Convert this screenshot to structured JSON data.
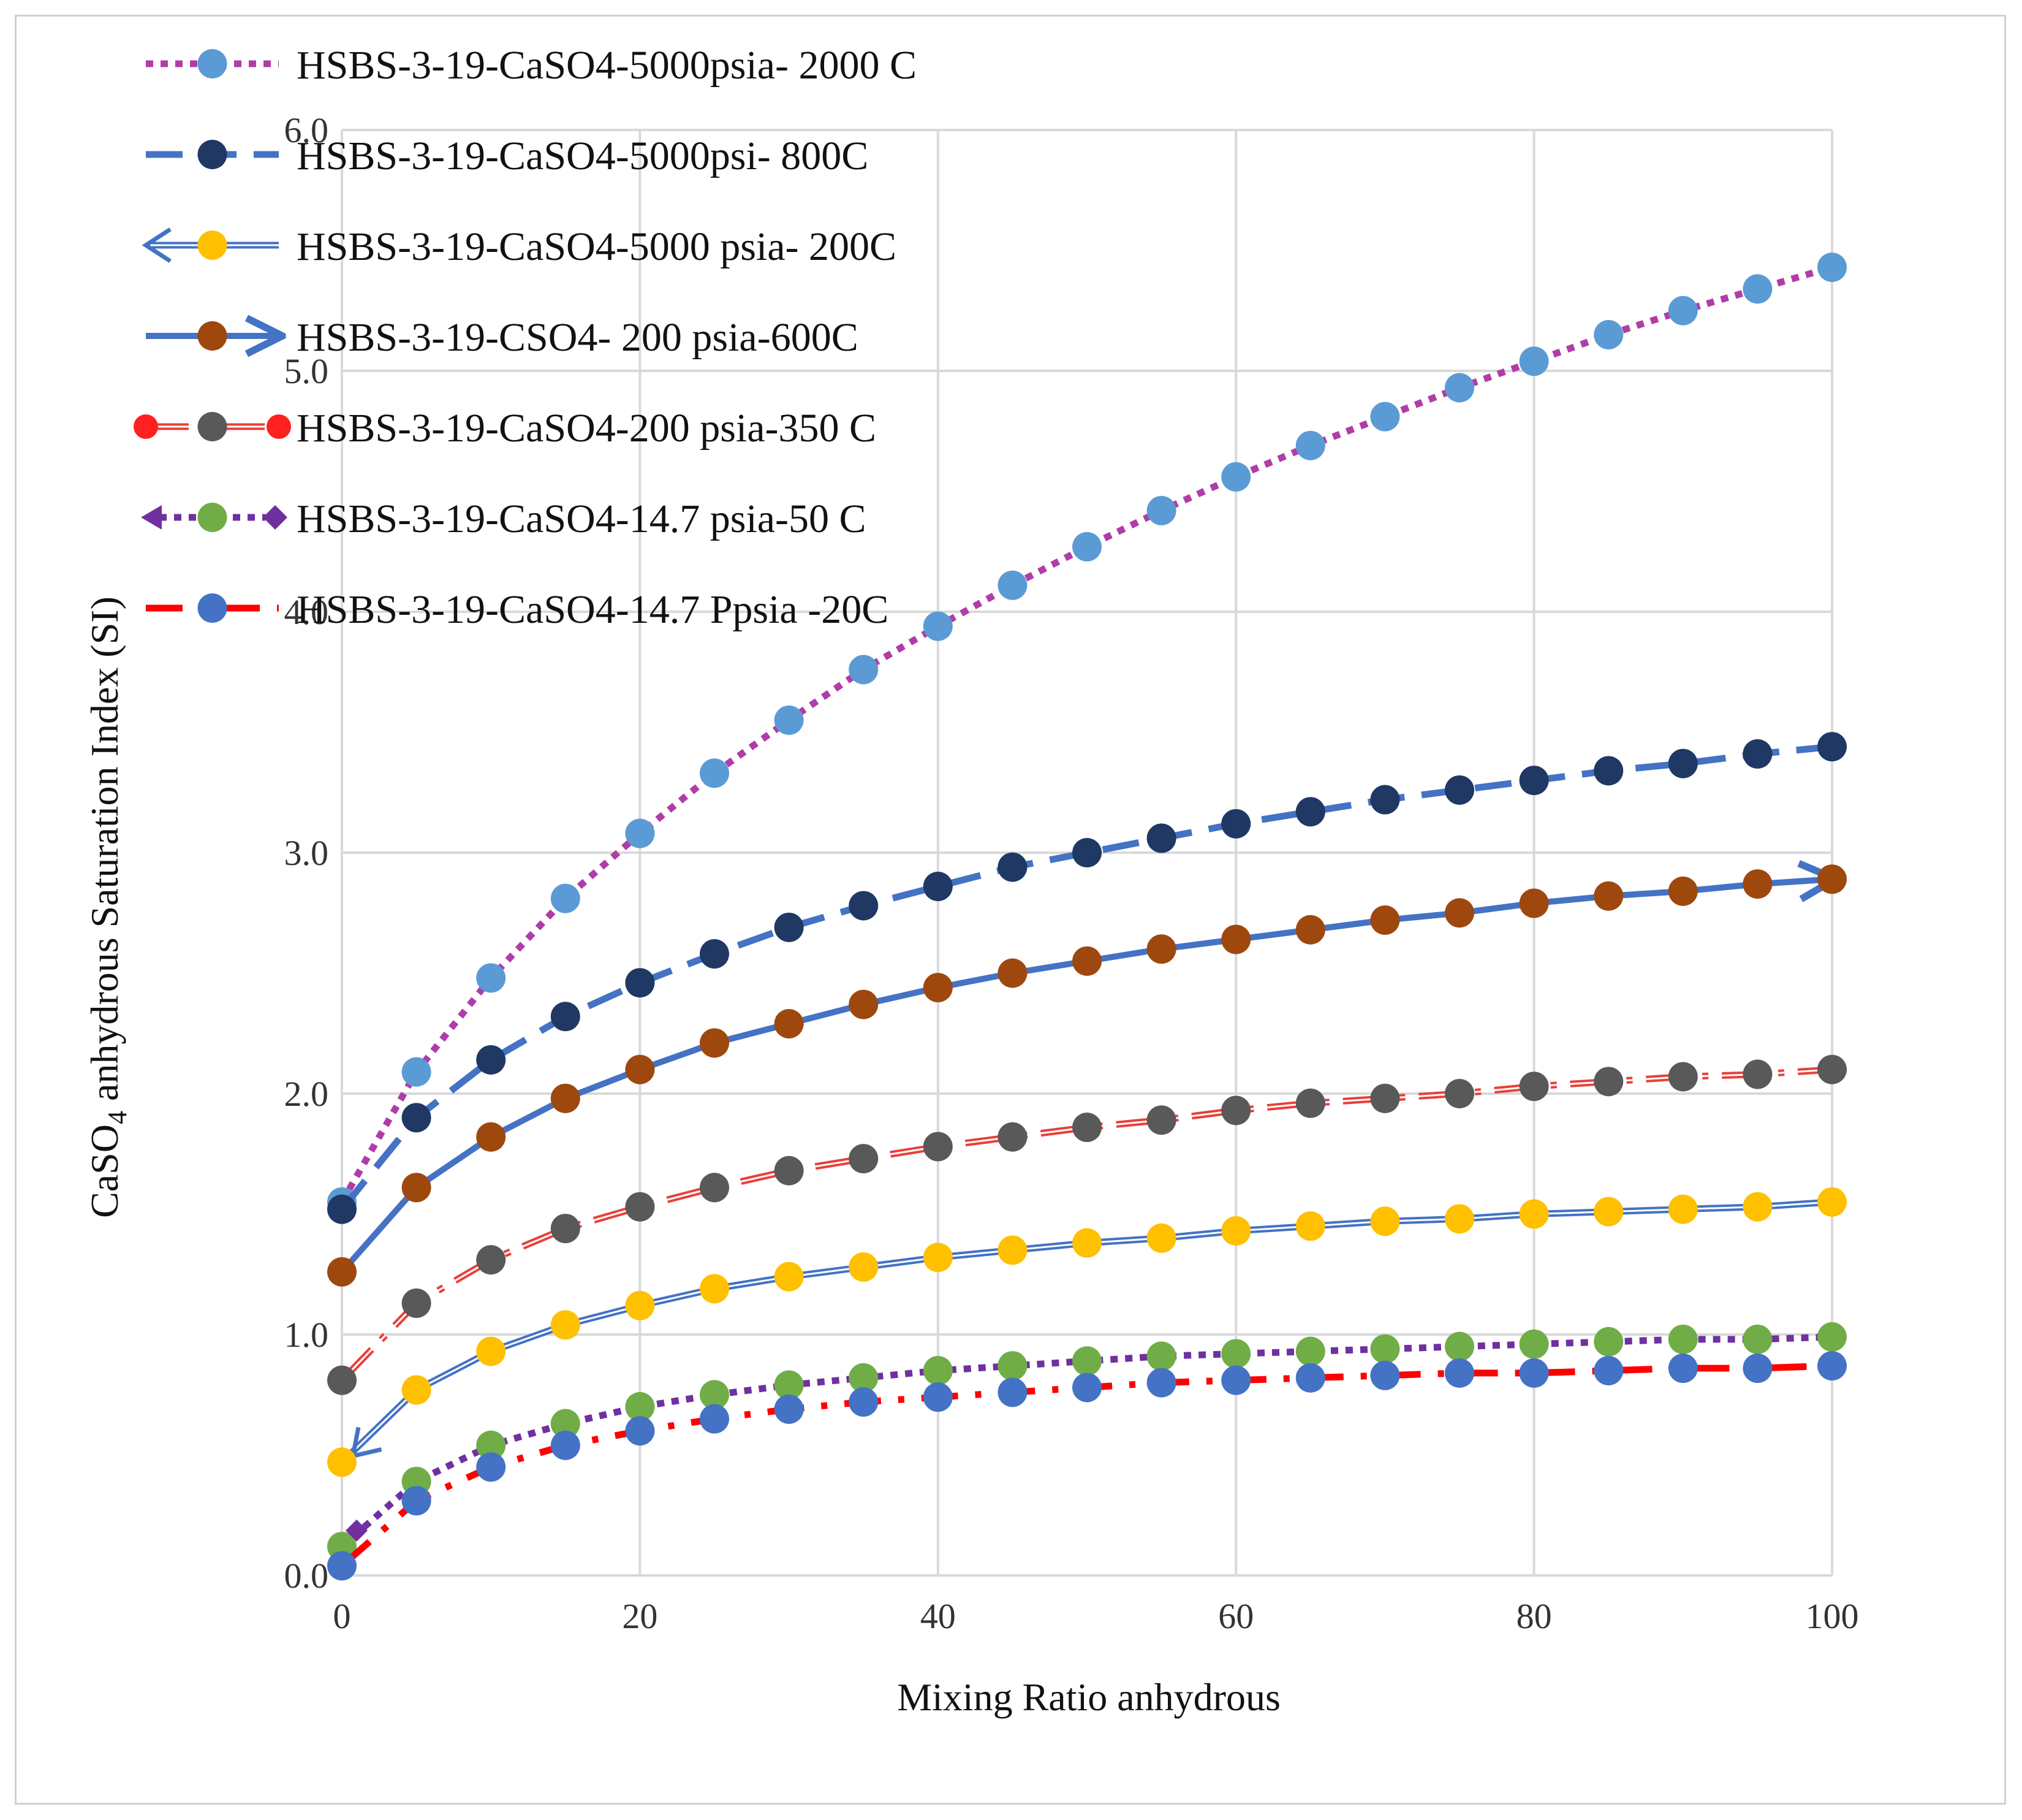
{
  "chart_data": {
    "type": "line",
    "title": "",
    "xlabel": "Mixing Ratio anhydrous",
    "ylabel": "CaSO4 anhydrous Saturation Index (SI)",
    "ylabel_parts": {
      "pre": "CaSO",
      "sub": "4",
      "post": " anhydrous Saturation Index (SI)"
    },
    "xlim": [
      0,
      100
    ],
    "ylim": [
      0,
      6
    ],
    "grid": true,
    "legend_position": "top-left",
    "x_ticks": [
      "0",
      "20",
      "40",
      "60",
      "80",
      "100"
    ],
    "y_ticks": [
      "0.0",
      "1.0",
      "2.0",
      "3.0",
      "4.0",
      "5.0",
      "6.0"
    ],
    "x": [
      0,
      5,
      10,
      15,
      20,
      25,
      30,
      35,
      40,
      45,
      50,
      55,
      60,
      65,
      70,
      75,
      80,
      85,
      90,
      95,
      100
    ],
    "series": [
      {
        "name": "HSBS-3-19-CaSO4-5000psia- 2000 C",
        "line_style": "dotted",
        "line_color": "#B03CA8",
        "marker_color": "#5B9BD5",
        "end_marker": "none",
        "values": [
          1.55,
          2.09,
          2.48,
          2.81,
          3.08,
          3.33,
          3.55,
          3.76,
          3.94,
          4.11,
          4.27,
          4.42,
          4.56,
          4.69,
          4.81,
          4.93,
          5.04,
          5.15,
          5.25,
          5.34,
          5.43
        ]
      },
      {
        "name": "HSBS-3-19-CaSO4-5000psi- 800C",
        "line_style": "dashed",
        "line_color": "#4472C4",
        "marker_color": "#1F3864",
        "end_marker": "none",
        "values": [
          1.52,
          1.9,
          2.14,
          2.32,
          2.46,
          2.58,
          2.69,
          2.78,
          2.86,
          2.94,
          3.0,
          3.06,
          3.12,
          3.17,
          3.22,
          3.26,
          3.3,
          3.34,
          3.37,
          3.41,
          3.44
        ]
      },
      {
        "name": "HSBS-3-19-CaSO4-5000 psia- 200C",
        "line_style": "double",
        "line_color": "#4472C4",
        "marker_color": "#FFC000",
        "end_marker": "arrow-start",
        "values": [
          0.47,
          0.77,
          0.93,
          1.04,
          1.12,
          1.19,
          1.24,
          1.28,
          1.32,
          1.35,
          1.38,
          1.4,
          1.43,
          1.45,
          1.47,
          1.48,
          1.5,
          1.51,
          1.52,
          1.53,
          1.55
        ]
      },
      {
        "name": "HSBS-3-19-CSO4- 200 psia-600C",
        "line_style": "solid",
        "line_color": "#4472C4",
        "marker_color": "#9E480E",
        "end_marker": "arrow-end",
        "values": [
          1.26,
          1.61,
          1.82,
          1.98,
          2.1,
          2.21,
          2.29,
          2.37,
          2.44,
          2.5,
          2.55,
          2.6,
          2.64,
          2.68,
          2.72,
          2.75,
          2.79,
          2.82,
          2.84,
          2.87,
          2.89
        ]
      },
      {
        "name": "HSBS-3-19-CaSO4-200 psia-350 C",
        "line_style": "double-dashdot",
        "line_color": "#E8403A",
        "marker_color": "#595959",
        "end_marker": "circle-both",
        "values": [
          0.81,
          1.13,
          1.31,
          1.44,
          1.53,
          1.61,
          1.68,
          1.73,
          1.78,
          1.82,
          1.86,
          1.89,
          1.93,
          1.96,
          1.98,
          2.0,
          2.03,
          2.05,
          2.07,
          2.08,
          2.1
        ]
      },
      {
        "name": "HSBS-3-19-CaSO4-14.7 psia-50 C",
        "line_style": "dotted",
        "line_color": "#7030A0",
        "marker_color": "#70AD47",
        "end_marker": "diamond-both",
        "values": [
          0.12,
          0.39,
          0.54,
          0.63,
          0.7,
          0.75,
          0.79,
          0.82,
          0.85,
          0.87,
          0.89,
          0.91,
          0.92,
          0.93,
          0.94,
          0.95,
          0.96,
          0.97,
          0.98,
          0.98,
          0.99
        ]
      },
      {
        "name": "HSBS-3-19-CaSO4-14.7 Ppsia -20C",
        "line_style": "dashdot",
        "line_color": "#FF0000",
        "marker_color": "#4472C4",
        "end_marker": "none",
        "values": [
          0.04,
          0.31,
          0.45,
          0.54,
          0.6,
          0.65,
          0.69,
          0.72,
          0.74,
          0.76,
          0.78,
          0.8,
          0.81,
          0.82,
          0.83,
          0.84,
          0.84,
          0.85,
          0.86,
          0.86,
          0.87
        ]
      }
    ]
  }
}
